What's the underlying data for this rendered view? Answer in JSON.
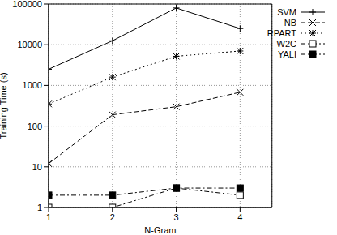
{
  "chart_data": {
    "type": "line",
    "x_label": "N-Gram",
    "y_label": "Training Time (s)",
    "x": [
      1,
      2,
      3,
      4
    ],
    "xlim": [
      1,
      4.5
    ],
    "xticks": [
      1,
      2,
      3,
      4
    ],
    "ylim": [
      1,
      100000
    ],
    "yticks": [
      1,
      10,
      100,
      1000,
      10000,
      100000
    ],
    "log": "y",
    "grid": true,
    "legend": "top right",
    "series": [
      {
        "name": "SVM",
        "color": "#000000",
        "marker": "plus",
        "line_style": "solid",
        "values": [
          2500,
          12500,
          80000,
          25000
        ]
      },
      {
        "name": "NB",
        "color": "#000000",
        "marker": "x",
        "line_style": "dashed",
        "values": [
          12,
          190,
          300,
          680
        ]
      },
      {
        "name": "RPART",
        "color": "#000000",
        "marker": "star",
        "line_style": "dotted",
        "values": [
          350,
          1600,
          5200,
          7000
        ]
      },
      {
        "name": "W2C",
        "color": "#000000",
        "marker": "square_open",
        "line_style": "dashdot",
        "values": [
          1,
          1,
          3,
          2
        ]
      },
      {
        "name": "YALI",
        "color": "#000000",
        "marker": "square",
        "line_style": "dashdot",
        "values": [
          2,
          2,
          3,
          3
        ]
      }
    ]
  }
}
